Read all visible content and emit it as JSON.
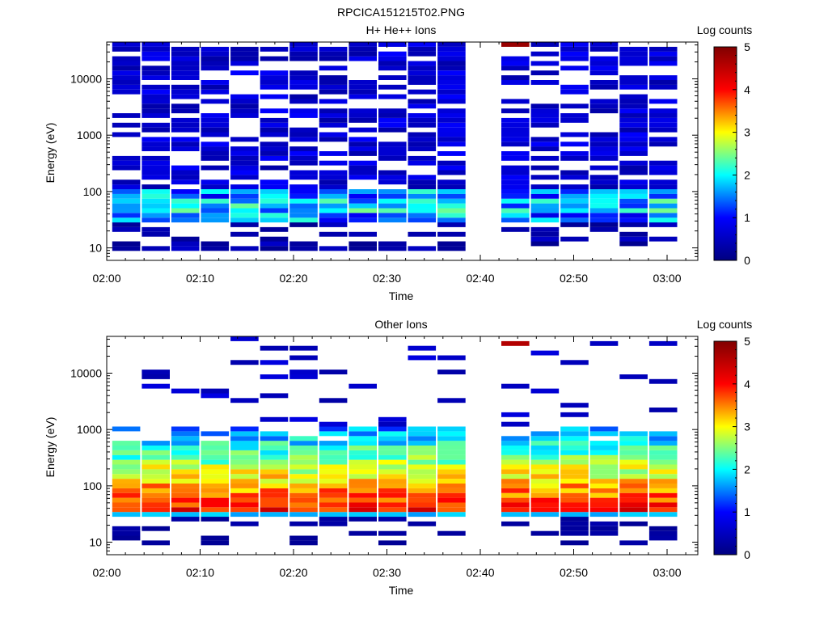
{
  "figure_title": "RPCICA151215T02.PNG",
  "colors": {
    "colormap": [
      "#000080",
      "#0000ff",
      "#00ffff",
      "#ffff00",
      "#ff0000",
      "#800000"
    ],
    "axis": "#000000",
    "background": "#ffffff"
  },
  "chart_data": [
    {
      "type": "heatmap",
      "title": "H+ He++ Ions",
      "xlabel": "Time",
      "ylabel": "Energy (eV)",
      "y_scale": "log",
      "ylim": [
        6,
        45000
      ],
      "xlim": [
        "02:00",
        "03:03"
      ],
      "x_ticks": [
        "02:00",
        "02:10",
        "02:20",
        "02:30",
        "02:40",
        "02:50",
        "03:00"
      ],
      "y_ticks": [
        "10",
        "100",
        "1000",
        "10000"
      ],
      "colorbar": {
        "label": "Log counts",
        "range": [
          0,
          5
        ],
        "ticks": [
          "0",
          "1",
          "2",
          "3",
          "4",
          "5"
        ]
      },
      "x_bin_edges": [
        "02:00:30",
        "02:03:40",
        "02:06:50",
        "02:10:00",
        "02:13:10",
        "02:16:20",
        "02:19:30",
        "02:22:40",
        "02:25:50",
        "02:29:00",
        "02:32:10",
        "02:35:20",
        "02:38:30",
        "02:42:10",
        "02:45:20",
        "02:48:30",
        "02:51:40",
        "02:54:50",
        "02:58:00",
        "03:01:10"
      ],
      "gap": {
        "from": "02:38:30",
        "to": "02:42:10"
      },
      "profile": "Bins of roughly 0.5 log counts at all energies 100-45000 eV interleaved with empty energy bins; values rising to about 1.0-2.3 near 40-80 eV; sparse low counts below 30 eV; one bin near 45000 eV at 02:44 reaching 4.8."
    },
    {
      "type": "heatmap",
      "title": "Other Ions",
      "xlabel": "Time",
      "ylabel": "Energy (eV)",
      "y_scale": "log",
      "ylim": [
        6,
        45000
      ],
      "xlim": [
        "02:00",
        "03:03"
      ],
      "x_ticks": [
        "02:00",
        "02:10",
        "02:20",
        "02:30",
        "02:40",
        "02:50",
        "03:00"
      ],
      "y_ticks": [
        "10",
        "100",
        "1000",
        "10000"
      ],
      "colorbar": {
        "label": "Log counts",
        "range": [
          0,
          5
        ],
        "ticks": [
          "0",
          "1",
          "2",
          "3",
          "4",
          "5"
        ]
      },
      "x_bin_edges": [
        "02:00:30",
        "02:03:40",
        "02:06:50",
        "02:10:00",
        "02:13:10",
        "02:16:20",
        "02:19:30",
        "02:22:40",
        "02:25:50",
        "02:29:00",
        "02:32:10",
        "02:35:20",
        "02:38:30",
        "02:42:10",
        "02:45:20",
        "02:48:30",
        "02:51:40",
        "02:54:50",
        "02:58:00",
        "03:01:10"
      ],
      "gap": {
        "from": "02:38:30",
        "to": "02:42:10"
      },
      "profile": "Continuous band from about 27 eV to about 1000 eV peaking at 3.2-4.2 log counts near 40-60 eV and fading to about 1 near 1000 eV; a low cyan row near 30 eV; scattered single low-count bins above 1000 eV; one bin near 32000 eV at 02:44 reaching 4.6."
    }
  ]
}
